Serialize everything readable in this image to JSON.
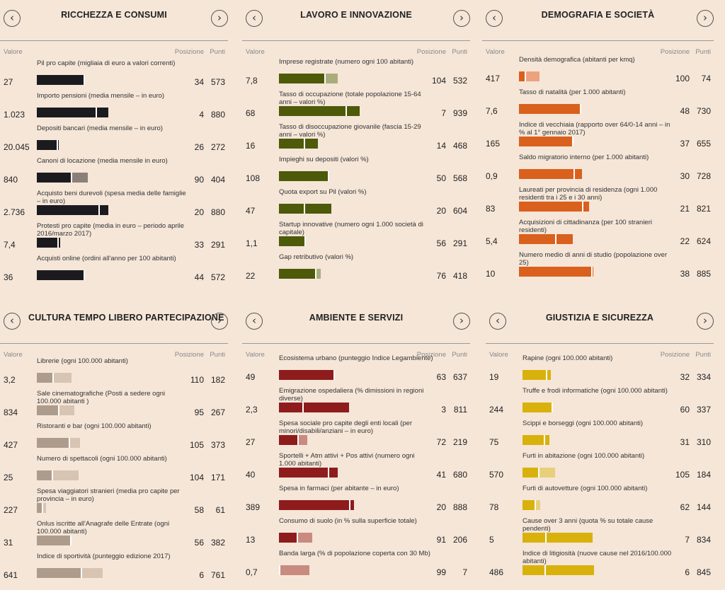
{
  "headers": {
    "valore": "Valore",
    "posizione": "Posizione",
    "punti": "Punti"
  },
  "panels": [
    {
      "title": "RICCHEZZA E CONSUMI",
      "colors": [
        "#1b1b1f",
        "#8b8079",
        "#d2c1b1"
      ],
      "rows": [
        {
          "metric": "Pil pro capite (migliaia di euro a valori correnti)",
          "value": "27",
          "pos": "34",
          "pts": "573",
          "score": 0.573,
          "tick": 0.573,
          "alt": 0.573
        },
        {
          "metric": "Importo pensioni (media mensile – in euro)",
          "value": "1.023",
          "pos": "4",
          "pts": "880",
          "score": 0.88,
          "tick": 0.72,
          "alt": 0.88
        },
        {
          "metric": "Depositi bancari (media mensile – in euro)",
          "value": "20.045",
          "pos": "26",
          "pts": "272",
          "score": 0.272,
          "tick": 0.24,
          "alt": 0.272
        },
        {
          "metric": "Canoni di locazione (media mensile in euro)",
          "value": "840",
          "pos": "90",
          "pts": "404",
          "score": 0.42,
          "tick": 0.42,
          "alt": 0.63
        },
        {
          "metric": "Acquisto beni durevoli (spesa media delle famiglie – in euro)",
          "value": "2.736",
          "pos": "20",
          "pts": "880",
          "score": 0.88,
          "tick": 0.76,
          "alt": 0.88
        },
        {
          "metric": "Protesti pro capite (media in euro – periodo aprile 2016/marzo 2017)",
          "value": "7,4",
          "pos": "33",
          "pts": "291",
          "score": 0.291,
          "tick": 0.25,
          "alt": 0.291
        },
        {
          "metric": "Acquisti online (ordini all'anno per 100 abitanti)",
          "value": "36",
          "pos": "44",
          "pts": "572",
          "score": 0.572,
          "tick": 0.572,
          "alt": 0.572
        }
      ]
    },
    {
      "title": "LAVORO E INNOVAZIONE",
      "colors": [
        "#4c5a0a",
        "#a9ad7c",
        "#d2c1b1"
      ],
      "rows": [
        {
          "metric": "Imprese registrate (numero ogni 100 abitanti)",
          "value": "7,8",
          "pos": "104",
          "pts": "532",
          "score": 0.56,
          "tick": 0.56,
          "alt": 0.72
        },
        {
          "metric": "Tasso di occupazione (totale popolazione 15-64 anni – valori %)",
          "value": "68",
          "pos": "7",
          "pts": "939",
          "score": 0.99,
          "tick": 0.82,
          "alt": 0.99
        },
        {
          "metric": "Tasso di disoccupazione giovanile (fascia 15-29 anni – valori %)",
          "value": "16",
          "pos": "14",
          "pts": "468",
          "score": 0.48,
          "tick": 0.3,
          "alt": 0.48
        },
        {
          "metric": "Impieghi su depositi (valori %)",
          "value": "108",
          "pos": "50",
          "pts": "568",
          "score": 0.6,
          "tick": 0.6,
          "alt": 0.6
        },
        {
          "metric": "Quota export su Pil (valori %)",
          "value": "47",
          "pos": "20",
          "pts": "604",
          "score": 0.64,
          "tick": 0.3,
          "alt": 0.64
        },
        {
          "metric": "Startup innovative (numero ogni 1.000 società di capitale)",
          "value": "1,1",
          "pos": "56",
          "pts": "291",
          "score": 0.31,
          "tick": 0.31,
          "alt": 0.31
        },
        {
          "metric": "Gap retributivo (valori %)",
          "value": "22",
          "pos": "76",
          "pts": "418",
          "score": 0.44,
          "tick": 0.44,
          "alt": 0.51
        }
      ]
    },
    {
      "title": "DEMOGRAFIA E SOCIETÀ",
      "colors": [
        "#d9601d",
        "#eda27f",
        "#d2c1b1"
      ],
      "rows": [
        {
          "metric": "Densità demografica (abitanti per kmq)",
          "value": "417",
          "pos": "100",
          "pts": "74",
          "score": 0.07,
          "tick": 0.07,
          "alt": 0.25
        },
        {
          "metric": "Tasso di natalità (per 1.000 abitanti)",
          "value": "7,6",
          "pos": "48",
          "pts": "730",
          "score": 0.75,
          "tick": 0.75,
          "alt": 0.75
        },
        {
          "metric": "Indice di vecchiaia (rapporto over 64/0-14 anni – in % al 1° gennaio 2017)",
          "value": "165",
          "pos": "37",
          "pts": "655",
          "score": 0.67,
          "tick": 0.65,
          "alt": 0.67
        },
        {
          "metric": "Saldo migratorio interno (per 1.000 abitanti)",
          "value": "0,9",
          "pos": "30",
          "pts": "728",
          "score": 0.77,
          "tick": 0.67,
          "alt": 0.77
        },
        {
          "metric": "Laureati per provincia di residenza (ogni 1.000 residenti tra i 25 e i 30 anni)",
          "value": "83",
          "pos": "21",
          "pts": "821",
          "score": 0.86,
          "tick": 0.77,
          "alt": 0.86
        },
        {
          "metric": "Acquisizioni di cittadinanza (per 100 stranieri residenti)",
          "value": "5,4",
          "pos": "22",
          "pts": "624",
          "score": 0.66,
          "tick": 0.44,
          "alt": 0.66
        },
        {
          "metric": "Numero medio di anni di studio (popolazione over 25)",
          "value": "10",
          "pos": "38",
          "pts": "885",
          "score": 0.91,
          "tick": 0.89,
          "alt": 0.91
        }
      ]
    },
    {
      "title": "CULTURA TEMPO LIBERO PARTECIPAZIONE",
      "colors": [
        "#ad9c8c",
        "#d7c4b2",
        "#d2c1b1"
      ],
      "rows": [
        {
          "metric": "Librerie (ogni 100.000 abitanti)",
          "value": "3,2",
          "pos": "110",
          "pts": "182",
          "score": 0.19,
          "tick": 0.19,
          "alt": 0.43
        },
        {
          "metric": "Sale cinematografiche (Posti a sedere ogni 100.000 abitanti )",
          "value": "834",
          "pos": "95",
          "pts": "267",
          "score": 0.26,
          "tick": 0.26,
          "alt": 0.46
        },
        {
          "metric": "Ristoranti e bar (ogni 100.000 abitanti)",
          "value": "427",
          "pos": "105",
          "pts": "373",
          "score": 0.39,
          "tick": 0.39,
          "alt": 0.53
        },
        {
          "metric": "Numero di spettacoli (ogni 100.000 abitanti)",
          "value": "25",
          "pos": "104",
          "pts": "171",
          "score": 0.18,
          "tick": 0.18,
          "alt": 0.51
        },
        {
          "metric": "Spesa viaggiatori stranieri (media pro capite per provincia – in euro)",
          "value": "227",
          "pos": "58",
          "pts": "61",
          "score": 0.06,
          "tick": 0.06,
          "alt": 0.11
        },
        {
          "metric": "Onlus iscritte all'Anagrafe delle Entrate (ogni 100.000 abitanti)",
          "value": "31",
          "pos": "56",
          "pts": "382",
          "score": 0.41,
          "tick": 0.41,
          "alt": 0.41
        },
        {
          "metric": "Indice di sportività (punteggio edizione 2017)",
          "value": "641",
          "pos": "6",
          "pts": "761",
          "score": 0.54,
          "tick": 0.54,
          "alt": 0.81
        }
      ]
    },
    {
      "title": "AMBIENTE E SERVIZI",
      "colors": [
        "#8e1c1c",
        "#c98a80",
        "#d2c1b1"
      ],
      "rows": [
        {
          "metric": "Ecosistema urbano (punteggio Indice Legambiente)",
          "value": "49",
          "pos": "63",
          "pts": "637",
          "score": 0.68,
          "tick": 0.67,
          "alt": 0.68
        },
        {
          "metric": "Emigrazione ospedaliera (% dimissioni in regioni diverse)",
          "value": "2,3",
          "pos": "3",
          "pts": "811",
          "score": 0.86,
          "tick": 0.29,
          "alt": 0.86
        },
        {
          "metric": "Spesa sociale pro capite degli enti locali (per minori/disabili/anziani – in euro)",
          "value": "27",
          "pos": "72",
          "pts": "219",
          "score": 0.23,
          "tick": 0.23,
          "alt": 0.35
        },
        {
          "metric": "Sportelli + Atm attivi + Pos attivi (numero ogni 1.000 abitanti)",
          "value": "40",
          "pos": "41",
          "pts": "680",
          "score": 0.72,
          "tick": 0.6,
          "alt": 0.72
        },
        {
          "metric": "Spesa in farmaci (per abitante – in euro)",
          "value": "389",
          "pos": "20",
          "pts": "888",
          "score": 0.92,
          "tick": 0.86,
          "alt": 0.92
        },
        {
          "metric": "Consumo di suolo (in % sulla superficie totale)",
          "value": "13",
          "pos": "91",
          "pts": "206",
          "score": 0.22,
          "tick": 0.22,
          "alt": 0.41
        },
        {
          "metric": "Banda larga (% di popolazione coperta con 30 Mb)",
          "value": "0,7",
          "pos": "99",
          "pts": "7",
          "score": 0.0,
          "tick": 0.0,
          "alt": 0.37
        }
      ]
    },
    {
      "title": "GIUSTIZIA E SICUREZZA",
      "colors": [
        "#d9b10c",
        "#e8d07a",
        "#d2c1b1"
      ],
      "rows": [
        {
          "metric": "Rapine (ogni 100.000 abitanti)",
          "value": "19",
          "pos": "32",
          "pts": "334",
          "score": 0.35,
          "tick": 0.29,
          "alt": 0.35
        },
        {
          "metric": "Truffe e frodi informatiche (ogni 100.000 abitanti)",
          "value": "244",
          "pos": "60",
          "pts": "337",
          "score": 0.36,
          "tick": 0.36,
          "alt": 0.36
        },
        {
          "metric": "Scippi e borseggi (ogni 100.000 abitanti)",
          "value": "75",
          "pos": "31",
          "pts": "310",
          "score": 0.33,
          "tick": 0.26,
          "alt": 0.33
        },
        {
          "metric": "Furti in abitazione (ogni 100.000 abitanti)",
          "value": "570",
          "pos": "105",
          "pts": "184",
          "score": 0.19,
          "tick": 0.19,
          "alt": 0.4
        },
        {
          "metric": "Furti di autovetture (ogni 100.000 abitanti)",
          "value": "78",
          "pos": "62",
          "pts": "144",
          "score": 0.15,
          "tick": 0.15,
          "alt": 0.22
        },
        {
          "metric": "Cause over 3 anni (quota % su totale cause pendenti)",
          "value": "5",
          "pos": "7",
          "pts": "834",
          "score": 0.86,
          "tick": 0.28,
          "alt": 0.86
        },
        {
          "metric": "Indice di litigiosità (nuove cause nel 2016/100.000 abitanti)",
          "value": "486",
          "pos": "6",
          "pts": "845",
          "score": 0.88,
          "tick": 0.27,
          "alt": 0.88
        }
      ]
    }
  ]
}
